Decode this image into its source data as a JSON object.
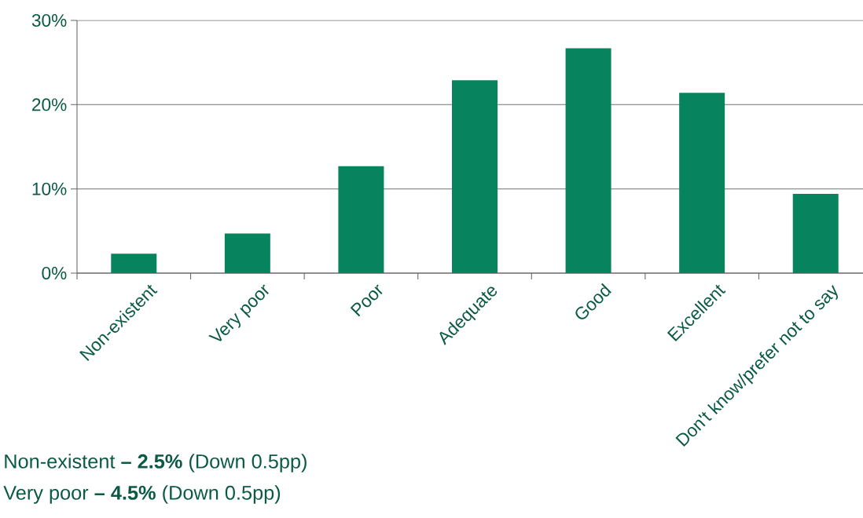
{
  "chart_data": {
    "type": "bar",
    "categories": [
      "Non-existent",
      "Very poor",
      "Poor",
      "Adequate",
      "Good",
      "Excellent",
      "Don't know/prefer not to say"
    ],
    "values": [
      2.3,
      4.7,
      12.7,
      22.9,
      26.7,
      21.4,
      9.4
    ],
    "color": "#07845e",
    "ylim": [
      0,
      30
    ],
    "yticks": [
      {
        "value": 0,
        "label": "0%"
      },
      {
        "value": 10,
        "label": "10%"
      },
      {
        "value": 20,
        "label": "20%"
      },
      {
        "value": 30,
        "label": "30%"
      }
    ],
    "grid": "y",
    "annotations": [
      "Non-existent **– 2.5%** (Down 0.5pp)",
      "Very poor **– 4.5%** (Down 0.5pp)"
    ]
  }
}
